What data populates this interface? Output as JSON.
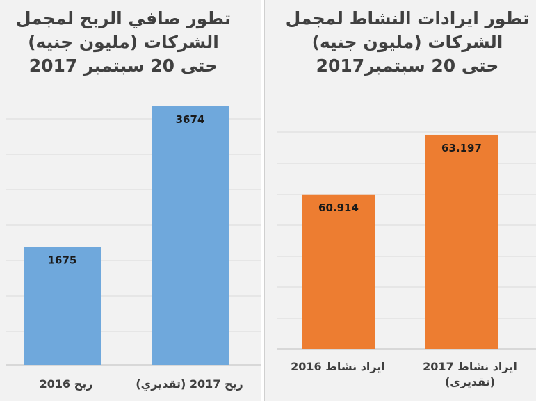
{
  "chart_data": [
    {
      "type": "bar",
      "title_lines": [
        "تطور صافي الربح لمجمل",
        "الشركات (مليون جنيه)",
        "حتى 20 سبتمبر 2017"
      ],
      "categories": [
        "ربح 2016",
        "ربح 2017 (تقديري)"
      ],
      "values": [
        1675,
        3674
      ],
      "value_labels": [
        "1675",
        "3674"
      ],
      "ylim": [
        0,
        4000
      ],
      "grid": true,
      "color": "#6fa8dc"
    },
    {
      "type": "bar",
      "title_lines": [
        "تطور ايرادات النشاط لمجمل",
        "الشركات (مليون جنيه)",
        "حتى 20 سبتمبر2017"
      ],
      "categories": [
        "ايراد نشاط 2016",
        "ايراد نشاط 2017 (تقديري)"
      ],
      "category_lines": [
        [
          "ايراد نشاط 2016"
        ],
        [
          "ايراد نشاط 2017",
          "(تقديري)"
        ]
      ],
      "values": [
        60914,
        63197
      ],
      "value_labels": [
        "60.914",
        "63.197"
      ],
      "ylim": [
        55000,
        64500
      ],
      "grid": true,
      "color": "#ed7d31"
    }
  ]
}
